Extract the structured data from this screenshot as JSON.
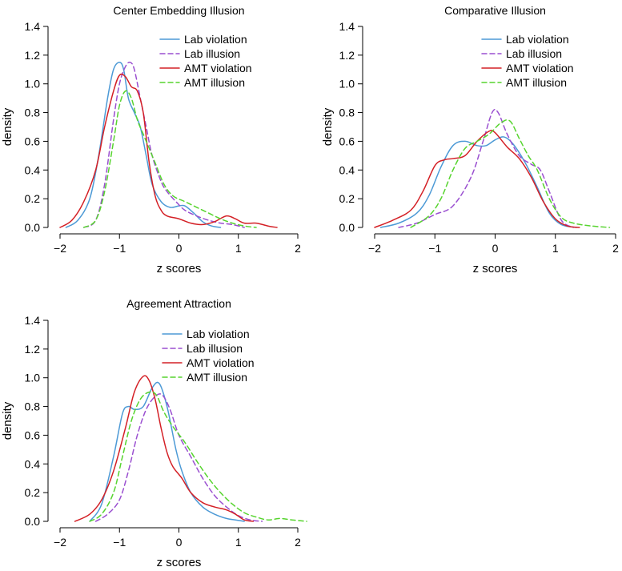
{
  "colors": {
    "lab_violation": "#4d9ad6",
    "lab_illusion": "#9a4fd0",
    "amt_violation": "#d42026",
    "amt_illusion": "#57d42f"
  },
  "chart_data": [
    {
      "type": "line",
      "title": "Center Embedding Illusion",
      "xlabel": "z scores",
      "ylabel": "density",
      "xlim": [
        -2,
        2
      ],
      "ylim": [
        0,
        1.4
      ],
      "xticks": [
        -2,
        -1,
        0,
        1,
        2
      ],
      "xtick_labels": [
        "−2",
        "−1",
        "0",
        "1",
        "2"
      ],
      "yticks": [
        0.0,
        0.2,
        0.4,
        0.6,
        0.8,
        1.0,
        1.2,
        1.4
      ],
      "ytick_labels": [
        "0.0",
        "0.2",
        "0.4",
        "0.6",
        "0.8",
        "1.0",
        "1.2",
        "1.4"
      ],
      "legend_position": "top-right",
      "series": [
        {
          "key": "lab_violation",
          "name": "Lab violation",
          "dash": "solid",
          "x": [
            -1.9,
            -1.7,
            -1.5,
            -1.35,
            -1.2,
            -1.1,
            -1.0,
            -0.93,
            -0.85,
            -0.75,
            -0.65,
            -0.55,
            -0.45,
            -0.3,
            -0.15,
            0.0,
            0.1,
            0.25,
            0.4,
            0.55,
            0.7
          ],
          "y": [
            0.0,
            0.05,
            0.2,
            0.5,
            0.9,
            1.1,
            1.15,
            1.1,
            0.9,
            0.8,
            0.7,
            0.5,
            0.3,
            0.18,
            0.14,
            0.15,
            0.15,
            0.1,
            0.04,
            0.01,
            0.0
          ]
        },
        {
          "key": "lab_illusion",
          "name": "Lab illusion",
          "dash": "dashed",
          "x": [
            -1.6,
            -1.4,
            -1.25,
            -1.1,
            -1.0,
            -0.9,
            -0.82,
            -0.75,
            -0.65,
            -0.55,
            -0.45,
            -0.3,
            -0.2,
            -0.05,
            0.1,
            0.3,
            0.5,
            0.7,
            0.9,
            1.1
          ],
          "y": [
            0.0,
            0.05,
            0.3,
            0.75,
            1.0,
            1.12,
            1.15,
            1.1,
            0.9,
            0.7,
            0.5,
            0.32,
            0.25,
            0.18,
            0.12,
            0.08,
            0.05,
            0.03,
            0.02,
            0.0
          ]
        },
        {
          "key": "amt_violation",
          "name": "AMT violation",
          "dash": "solid",
          "x": [
            -2.0,
            -1.8,
            -1.6,
            -1.4,
            -1.25,
            -1.1,
            -1.0,
            -0.9,
            -0.8,
            -0.7,
            -0.6,
            -0.5,
            -0.4,
            -0.3,
            -0.2,
            0.0,
            0.2,
            0.4,
            0.6,
            0.8,
            0.95,
            1.1,
            1.3,
            1.5,
            1.65
          ],
          "y": [
            0.0,
            0.05,
            0.18,
            0.4,
            0.7,
            0.95,
            1.06,
            1.05,
            0.98,
            0.95,
            0.8,
            0.45,
            0.22,
            0.12,
            0.08,
            0.06,
            0.03,
            0.02,
            0.04,
            0.08,
            0.06,
            0.03,
            0.03,
            0.01,
            0.0
          ]
        },
        {
          "key": "amt_illusion",
          "name": "AMT illusion",
          "dash": "dashed",
          "x": [
            -1.6,
            -1.4,
            -1.25,
            -1.1,
            -1.0,
            -0.9,
            -0.8,
            -0.7,
            -0.6,
            -0.5,
            -0.4,
            -0.25,
            -0.1,
            0.1,
            0.3,
            0.5,
            0.7,
            0.9,
            1.1,
            1.3
          ],
          "y": [
            0.0,
            0.05,
            0.25,
            0.6,
            0.85,
            0.95,
            0.9,
            0.75,
            0.65,
            0.55,
            0.45,
            0.3,
            0.22,
            0.18,
            0.14,
            0.1,
            0.06,
            0.03,
            0.01,
            0.0
          ]
        }
      ],
      "legend": [
        {
          "key": "lab_violation",
          "label": "Lab violation"
        },
        {
          "key": "lab_illusion",
          "label": "Lab illusion"
        },
        {
          "key": "amt_violation",
          "label": "AMT violation"
        },
        {
          "key": "amt_illusion",
          "label": "AMT illusion"
        }
      ]
    },
    {
      "type": "line",
      "title": "Comparative Illusion",
      "xlabel": "z scores",
      "ylabel": "density",
      "xlim": [
        -2,
        2
      ],
      "ylim": [
        0,
        1.4
      ],
      "xticks": [
        -2,
        -1,
        0,
        1,
        2
      ],
      "xtick_labels": [
        "−2",
        "−1",
        "0",
        "1",
        "2"
      ],
      "yticks": [
        0.0,
        0.2,
        0.4,
        0.6,
        0.8,
        1.0,
        1.2,
        1.4
      ],
      "ytick_labels": [
        "0.0",
        "0.2",
        "0.4",
        "0.6",
        "0.8",
        "1.0",
        "1.2",
        "1.4"
      ],
      "legend_position": "top-right",
      "series": [
        {
          "key": "lab_violation",
          "name": "Lab violation",
          "dash": "solid",
          "x": [
            -1.9,
            -1.6,
            -1.3,
            -1.1,
            -0.9,
            -0.7,
            -0.5,
            -0.3,
            -0.15,
            0.0,
            0.15,
            0.3,
            0.5,
            0.7,
            0.9,
            1.1,
            1.35
          ],
          "y": [
            0.0,
            0.03,
            0.1,
            0.22,
            0.42,
            0.57,
            0.6,
            0.57,
            0.57,
            0.61,
            0.63,
            0.58,
            0.45,
            0.28,
            0.1,
            0.02,
            0.0
          ]
        },
        {
          "key": "lab_illusion",
          "name": "Lab illusion",
          "dash": "dashed",
          "x": [
            -1.6,
            -1.3,
            -1.0,
            -0.7,
            -0.4,
            -0.2,
            -0.05,
            0.05,
            0.2,
            0.4,
            0.6,
            0.75,
            0.9,
            1.1,
            1.3
          ],
          "y": [
            0.0,
            0.03,
            0.09,
            0.15,
            0.35,
            0.6,
            0.8,
            0.8,
            0.65,
            0.5,
            0.44,
            0.4,
            0.25,
            0.05,
            0.0
          ]
        },
        {
          "key": "amt_violation",
          "name": "AMT violation",
          "dash": "solid",
          "x": [
            -2.0,
            -1.7,
            -1.4,
            -1.2,
            -1.0,
            -0.85,
            -0.7,
            -0.5,
            -0.3,
            -0.1,
            0.0,
            0.2,
            0.4,
            0.6,
            0.8,
            1.0,
            1.2,
            1.4
          ],
          "y": [
            0.0,
            0.05,
            0.12,
            0.25,
            0.43,
            0.47,
            0.48,
            0.5,
            0.6,
            0.67,
            0.66,
            0.56,
            0.48,
            0.35,
            0.18,
            0.06,
            0.01,
            0.0
          ]
        },
        {
          "key": "amt_illusion",
          "name": "AMT illusion",
          "dash": "dashed",
          "x": [
            -1.4,
            -1.1,
            -0.9,
            -0.7,
            -0.5,
            -0.3,
            -0.1,
            0.1,
            0.25,
            0.4,
            0.55,
            0.7,
            0.9,
            1.1,
            1.3,
            1.6,
            1.9
          ],
          "y": [
            0.0,
            0.08,
            0.2,
            0.4,
            0.55,
            0.6,
            0.65,
            0.73,
            0.74,
            0.62,
            0.5,
            0.4,
            0.2,
            0.07,
            0.03,
            0.01,
            0.0
          ]
        }
      ],
      "legend": [
        {
          "key": "lab_violation",
          "label": "Lab violation"
        },
        {
          "key": "lab_illusion",
          "label": "Lab illusion"
        },
        {
          "key": "amt_violation",
          "label": "AMT violation"
        },
        {
          "key": "amt_illusion",
          "label": "AMT illusion"
        }
      ]
    },
    {
      "type": "line",
      "title": "Agreement Attraction",
      "xlabel": "z scores",
      "ylabel": "density",
      "xlim": [
        -2,
        2
      ],
      "ylim": [
        0,
        1.4
      ],
      "xticks": [
        -2,
        -1,
        0,
        1,
        2
      ],
      "xtick_labels": [
        "−2",
        "−1",
        "0",
        "1",
        "2"
      ],
      "yticks": [
        0.0,
        0.2,
        0.4,
        0.6,
        0.8,
        1.0,
        1.2,
        1.4
      ],
      "ytick_labels": [
        "0.0",
        "0.2",
        "0.4",
        "0.6",
        "0.8",
        "1.0",
        "1.2",
        "1.4"
      ],
      "legend_position": "top-right",
      "series": [
        {
          "key": "lab_violation",
          "name": "Lab violation",
          "dash": "solid",
          "x": [
            -1.5,
            -1.3,
            -1.1,
            -0.95,
            -0.85,
            -0.75,
            -0.6,
            -0.45,
            -0.33,
            -0.2,
            -0.05,
            0.05,
            0.2,
            0.4,
            0.6,
            0.8,
            0.95,
            1.1
          ],
          "y": [
            0.0,
            0.12,
            0.45,
            0.75,
            0.8,
            0.78,
            0.8,
            0.93,
            0.96,
            0.8,
            0.5,
            0.35,
            0.2,
            0.1,
            0.05,
            0.02,
            0.01,
            0.0
          ]
        },
        {
          "key": "lab_illusion",
          "name": "Lab illusion",
          "dash": "dashed",
          "x": [
            -1.4,
            -1.2,
            -1.0,
            -0.85,
            -0.7,
            -0.55,
            -0.4,
            -0.28,
            -0.15,
            0.0,
            0.2,
            0.4,
            0.6,
            0.8,
            1.0,
            1.2,
            1.4
          ],
          "y": [
            0.0,
            0.05,
            0.15,
            0.35,
            0.6,
            0.78,
            0.87,
            0.88,
            0.78,
            0.6,
            0.45,
            0.3,
            0.18,
            0.1,
            0.04,
            0.01,
            0.0
          ]
        },
        {
          "key": "amt_violation",
          "name": "AMT violation",
          "dash": "solid",
          "x": [
            -1.75,
            -1.5,
            -1.3,
            -1.1,
            -0.9,
            -0.75,
            -0.6,
            -0.5,
            -0.4,
            -0.3,
            -0.2,
            -0.1,
            0.05,
            0.2,
            0.4,
            0.6,
            0.8,
            0.95,
            1.1,
            1.25
          ],
          "y": [
            0.0,
            0.05,
            0.15,
            0.35,
            0.65,
            0.9,
            1.01,
            0.98,
            0.85,
            0.65,
            0.48,
            0.38,
            0.3,
            0.2,
            0.13,
            0.1,
            0.08,
            0.05,
            0.01,
            0.0
          ]
        },
        {
          "key": "amt_illusion",
          "name": "AMT illusion",
          "dash": "dashed",
          "x": [
            -1.5,
            -1.3,
            -1.1,
            -0.95,
            -0.8,
            -0.65,
            -0.5,
            -0.38,
            -0.25,
            -0.1,
            0.1,
            0.3,
            0.5,
            0.7,
            0.9,
            1.1,
            1.3,
            1.5,
            1.7,
            1.9,
            2.15
          ],
          "y": [
            0.0,
            0.05,
            0.2,
            0.45,
            0.7,
            0.85,
            0.9,
            0.88,
            0.76,
            0.66,
            0.55,
            0.42,
            0.3,
            0.2,
            0.12,
            0.06,
            0.03,
            0.01,
            0.02,
            0.01,
            0.0
          ]
        }
      ],
      "legend": [
        {
          "key": "lab_violation",
          "label": "Lab violation"
        },
        {
          "key": "lab_illusion",
          "label": "Lab illusion"
        },
        {
          "key": "amt_violation",
          "label": "AMT violation"
        },
        {
          "key": "amt_illusion",
          "label": "AMT illusion"
        }
      ]
    }
  ]
}
